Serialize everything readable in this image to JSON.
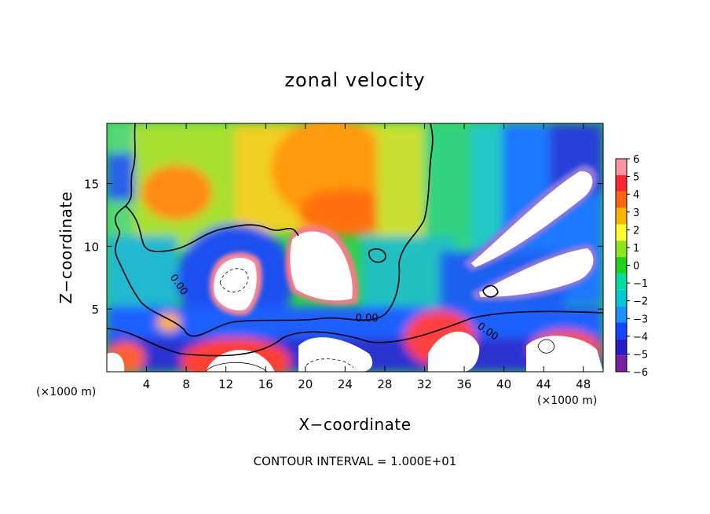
{
  "chart_data": {
    "type": "heatmap",
    "title": "zonal velocity",
    "xlabel": "X−coordinate",
    "ylabel": "Z−coordinate",
    "x_unit_label": "(×1000 m)",
    "x_ticks": [
      4,
      8,
      12,
      16,
      20,
      24,
      28,
      32,
      36,
      40,
      44,
      48
    ],
    "y_ticks": [
      5,
      10,
      15
    ],
    "xlim": [
      0,
      50
    ],
    "ylim": [
      0,
      19.8
    ],
    "colorbar": {
      "ticks": [
        "6",
        "5",
        "4",
        "3",
        "2",
        "1",
        "0",
        "−1",
        "−2",
        "−3",
        "−4",
        "−5",
        "−6"
      ],
      "range": [
        -6,
        6
      ],
      "colors": [
        "#7a1fa2",
        "#2a1ec8",
        "#1446ff",
        "#1e90ff",
        "#00c8d2",
        "#00dca0",
        "#1ed21e",
        "#8ce61e",
        "#ffff32",
        "#ffb400",
        "#ff6414",
        "#ff2832",
        "#ff96a0"
      ]
    },
    "contour_labels": [
      {
        "text": "0.00",
        "x": 26.2,
        "y": 4.0
      },
      {
        "text": "0.00",
        "x": 7.0,
        "y": 6.8
      },
      {
        "text": "0.00",
        "x": 38.2,
        "y": 3.0
      }
    ],
    "footnote": "CONTOUR INTERVAL = 1.000E+01"
  }
}
